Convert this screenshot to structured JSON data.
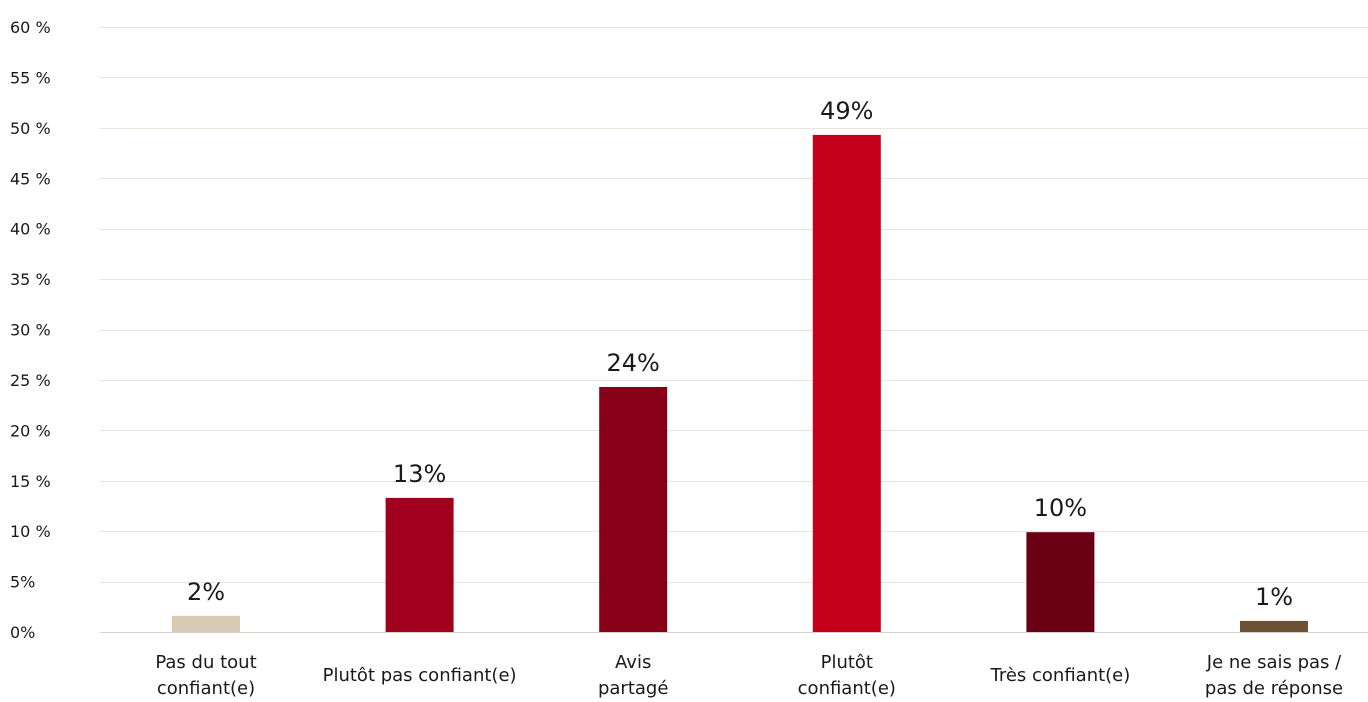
{
  "chart_data": {
    "type": "bar",
    "title": "",
    "xlabel": "",
    "ylabel": "",
    "ylim": [
      0,
      60
    ],
    "grid": true,
    "legend": "none",
    "y_tick_values": [
      0,
      5,
      10,
      15,
      20,
      25,
      30,
      35,
      40,
      45,
      50,
      55,
      60
    ],
    "y_tick_labels": [
      "0%",
      "5%",
      "10 %",
      "15 %",
      "20 %",
      "25 %",
      "30 %",
      "35 %",
      "40 %",
      "45 %",
      "50 %",
      "55 %",
      "60 %"
    ],
    "categories": [
      [
        "Pas du tout",
        "confiant(e)"
      ],
      [
        "Plutôt pas confiant(e)"
      ],
      [
        "Avis",
        "partagé"
      ],
      [
        "Plutôt",
        "confiant(e)"
      ],
      [
        "Très confiant(e)"
      ],
      [
        "Je ne sais pas /",
        "pas de réponse"
      ]
    ],
    "values": [
      1.6,
      13.3,
      24.3,
      49.3,
      9.9,
      1.1
    ],
    "data_labels": [
      "2%",
      "13%",
      "24%",
      "49%",
      "10%",
      "1%"
    ],
    "colors": [
      "#d9cbb4",
      "#a1001d",
      "#870017",
      "#c4001c",
      "#6a0014",
      "#6b5235"
    ]
  }
}
